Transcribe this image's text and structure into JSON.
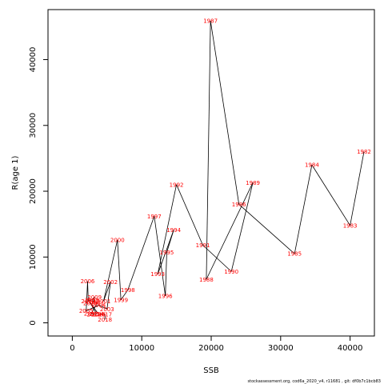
{
  "chart_data": {
    "type": "line",
    "xlabel": "SSB",
    "ylabel": "R(age 1)",
    "xlim": [
      -3500,
      43500
    ],
    "ylim": [
      -2000,
      47600
    ],
    "x_ticks": [
      0,
      10000,
      20000,
      30000,
      40000
    ],
    "y_ticks": [
      0,
      10000,
      20000,
      30000,
      40000
    ],
    "x_tick_labels": [
      "0",
      "10000",
      "20000",
      "30000",
      "40000"
    ],
    "y_tick_labels": [
      "0",
      "10000",
      "20000",
      "30000",
      "40000"
    ],
    "grid": false,
    "line_color": "#000000",
    "label_color": "#ff0000",
    "points": [
      {
        "year": "1982",
        "ssb": 42000,
        "r": 26000
      },
      {
        "year": "1983",
        "ssb": 40000,
        "r": 14800
      },
      {
        "year": "1984",
        "ssb": 34500,
        "r": 24000
      },
      {
        "year": "1985",
        "ssb": 32000,
        "r": 10500
      },
      {
        "year": "1986",
        "ssb": 24000,
        "r": 18000
      },
      {
        "year": "1987",
        "ssb": 19900,
        "r": 45900
      },
      {
        "year": "1988",
        "ssb": 19300,
        "r": 6600
      },
      {
        "year": "1989",
        "ssb": 26000,
        "r": 21300
      },
      {
        "year": "1990",
        "ssb": 22900,
        "r": 7800
      },
      {
        "year": "1991",
        "ssb": 18800,
        "r": 11800
      },
      {
        "year": "1992",
        "ssb": 15000,
        "r": 21000
      },
      {
        "year": "1993",
        "ssb": 12300,
        "r": 7400
      },
      {
        "year": "1994",
        "ssb": 14600,
        "r": 14100
      },
      {
        "year": "1995",
        "ssb": 13600,
        "r": 10700
      },
      {
        "year": "1996",
        "ssb": 13400,
        "r": 4100
      },
      {
        "year": "1997",
        "ssb": 11800,
        "r": 16200
      },
      {
        "year": "1998",
        "ssb": 8000,
        "r": 5000
      },
      {
        "year": "1999",
        "ssb": 7000,
        "r": 3500
      },
      {
        "year": "2000",
        "ssb": 6500,
        "r": 12600
      },
      {
        "year": "2001",
        "ssb": 4500,
        "r": 3300
      },
      {
        "year": "2002",
        "ssb": 5500,
        "r": 6200
      },
      {
        "year": "2003",
        "ssb": 5000,
        "r": 2100
      },
      {
        "year": "2004",
        "ssb": 3800,
        "r": 2700
      },
      {
        "year": "2005",
        "ssb": 2000,
        "r": 1800
      },
      {
        "year": "2006",
        "ssb": 2200,
        "r": 6300
      },
      {
        "year": "2007",
        "ssb": 2300,
        "r": 3300
      },
      {
        "year": "2008",
        "ssb": 2800,
        "r": 3500
      },
      {
        "year": "2009",
        "ssb": 3200,
        "r": 3900
      },
      {
        "year": "2010",
        "ssb": 3000,
        "r": 3200
      },
      {
        "year": "2011",
        "ssb": 3600,
        "r": 3000
      },
      {
        "year": "2012",
        "ssb": 2700,
        "r": 1400
      },
      {
        "year": "2013",
        "ssb": 3100,
        "r": 1300
      },
      {
        "year": "2014",
        "ssb": 3500,
        "r": 1350
      },
      {
        "year": "2015",
        "ssb": 2600,
        "r": 3000
      },
      {
        "year": "2016",
        "ssb": 3800,
        "r": 1300
      },
      {
        "year": "2017",
        "ssb": 4700,
        "r": 1300
      },
      {
        "year": "2018",
        "ssb": 4700,
        "r": 500
      }
    ]
  },
  "footer": "stockassessment.org, cod6a_2020_v4, r11681 , git: df0b7c1bcb83"
}
